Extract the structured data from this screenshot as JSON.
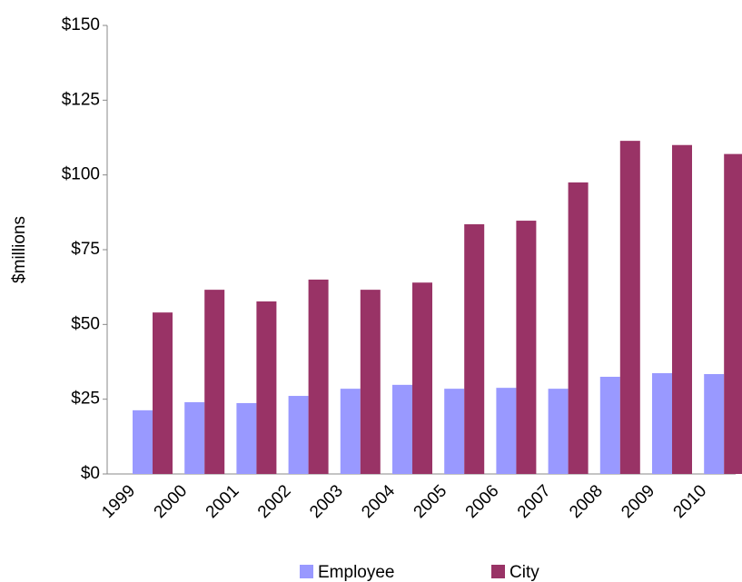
{
  "chart_data": {
    "type": "bar",
    "y_label": "$millions",
    "categories": [
      "1999",
      "2000",
      "2001",
      "2002",
      "2003",
      "2004",
      "2005",
      "2006",
      "2007",
      "2008",
      "2009",
      "2010"
    ],
    "series": [
      {
        "name": "Employee",
        "color": "#9999ff",
        "values": [
          21.3,
          24,
          23.7,
          26.1,
          28.5,
          29.8,
          28.5,
          28.8,
          28.5,
          32.5,
          33.7,
          33.4
        ]
      },
      {
        "name": "City",
        "color": "#993366",
        "values": [
          54,
          61.6,
          57.7,
          65,
          61.6,
          64,
          83.5,
          84.7,
          97.5,
          111.4,
          110,
          107
        ]
      }
    ],
    "ylim": [
      0,
      150
    ],
    "yticks": [
      {
        "value": 0,
        "label": "$0"
      },
      {
        "value": 25,
        "label": "$25"
      },
      {
        "value": 50,
        "label": "$50"
      },
      {
        "value": 75,
        "label": "$75"
      },
      {
        "value": 100,
        "label": "$100"
      },
      {
        "value": 125,
        "label": "$125"
      },
      {
        "value": 150,
        "label": "$150"
      }
    ],
    "legend": "bottom"
  }
}
